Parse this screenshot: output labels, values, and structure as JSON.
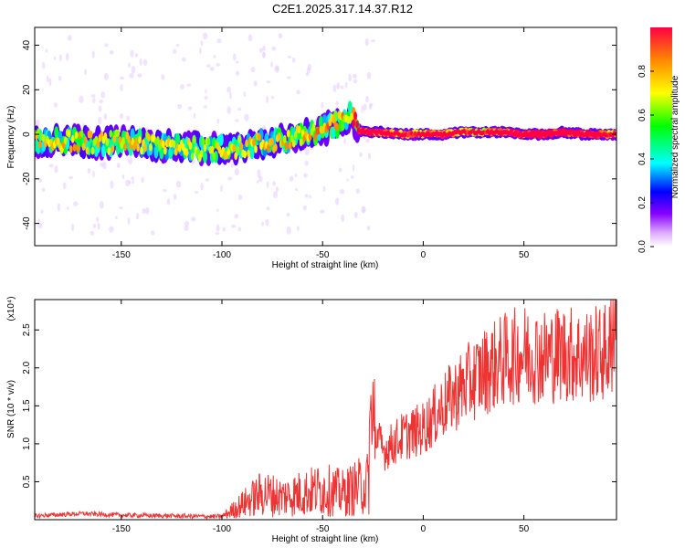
{
  "title": "C2E1.2025.317.14.37.R12",
  "chart_data": [
    {
      "type": "heatmap",
      "xlabel": "Height of straight line (km)",
      "ylabel": "Frequency (Hz)",
      "xlim": [
        -193,
        96
      ],
      "ylim": [
        -50,
        48
      ],
      "xticks": [
        -150,
        -100,
        -50,
        0,
        50
      ],
      "yticks": [
        -40,
        -20,
        0,
        20,
        40
      ],
      "colorbar": {
        "label": "Normalized spectral amplitude",
        "range": [
          0,
          1
        ],
        "ticks": [
          "0.0",
          "0.2",
          "0.4",
          "0.6",
          "0.8"
        ]
      },
      "ridge": {
        "x": [
          -193,
          -175,
          -160,
          -150,
          -140,
          -130,
          -120,
          -110,
          -100,
          -90,
          -80,
          -70,
          -60,
          -50,
          -42,
          -36,
          -32,
          -30,
          -20,
          -10,
          0,
          10,
          20,
          30,
          40,
          50,
          60,
          70,
          80,
          96
        ],
        "frequency": [
          -3,
          -3,
          -4,
          -3,
          -4,
          -5,
          -5,
          -7,
          -6,
          -6,
          -4,
          -3,
          -1,
          2,
          5,
          9,
          2,
          1,
          1,
          0,
          0,
          0,
          1,
          1,
          1,
          0,
          0,
          1,
          0,
          0
        ],
        "amplitude": [
          0.22,
          0.25,
          0.2,
          0.22,
          0.2,
          0.18,
          0.2,
          0.18,
          0.22,
          0.2,
          0.22,
          0.25,
          0.28,
          0.3,
          0.28,
          0.25,
          0.85,
          0.8,
          0.7,
          0.6,
          0.65,
          0.7,
          0.6,
          0.55,
          0.75,
          0.9,
          0.92,
          0.95,
          0.85,
          0.6
        ]
      }
    },
    {
      "type": "line",
      "xlabel": "Height of straight line (km)",
      "ylabel": "SNR (10 * v/v)",
      "y_multiplier": "(x10⁴)",
      "xlim": [
        -193,
        96
      ],
      "ylim": [
        0,
        2.9
      ],
      "xticks": [
        -150,
        -100,
        -50,
        0,
        50
      ],
      "yticks": [
        0.5,
        1.0,
        1.5,
        2.0,
        2.5
      ],
      "ytick_labels": [
        "0.5",
        "1.0",
        "1.5",
        "2.0",
        "2.5"
      ],
      "color": "#ee3333",
      "envelope": {
        "x": [
          -193,
          -170,
          -150,
          -100,
          -90,
          -80,
          -70,
          -60,
          -50,
          -40,
          -30,
          -26,
          -25,
          -20,
          -10,
          0,
          10,
          20,
          30,
          40,
          50,
          60,
          70,
          80,
          90,
          96
        ],
        "y": [
          0.05,
          0.08,
          0.06,
          0.04,
          0.2,
          0.35,
          0.3,
          0.35,
          0.4,
          0.35,
          0.45,
          0.5,
          1.2,
          0.9,
          1.1,
          1.2,
          1.5,
          1.75,
          1.95,
          2.1,
          2.2,
          2.15,
          2.2,
          2.15,
          2.2,
          2.25
        ]
      }
    }
  ]
}
